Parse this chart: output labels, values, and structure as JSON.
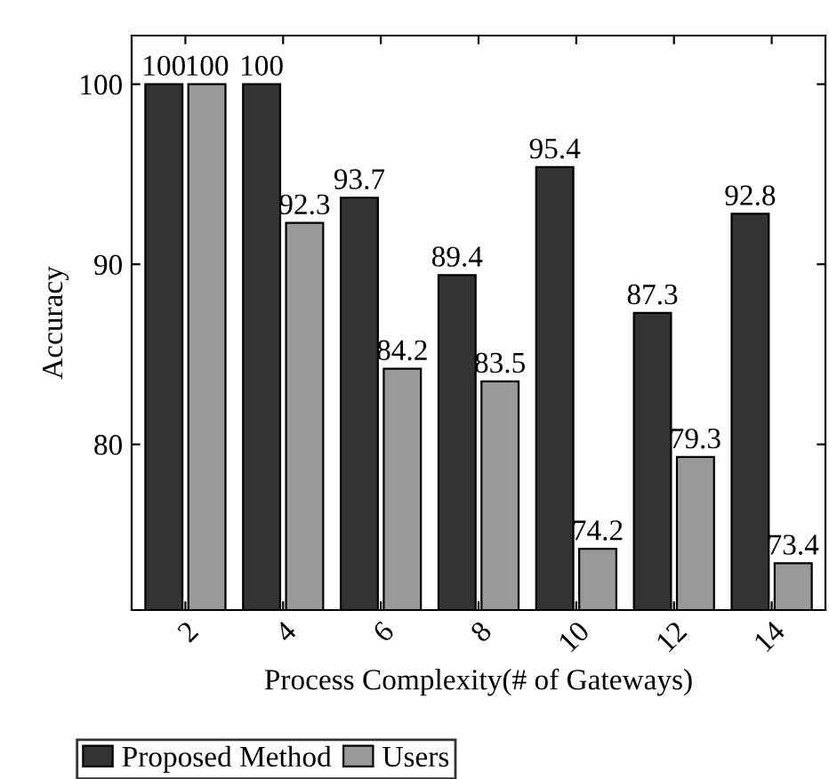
{
  "chart_data": {
    "type": "bar",
    "xlabel": "Process Complexity(# of Gateways)",
    "ylabel": "Accuracy",
    "categories": [
      "2",
      "4",
      "6",
      "8",
      "10",
      "12",
      "14"
    ],
    "series": [
      {
        "name": "Proposed Method",
        "color": "#333333",
        "values": [
          100,
          100,
          93.7,
          89.4,
          95.4,
          87.3,
          92.8
        ]
      },
      {
        "name": "Users",
        "color": "#999999",
        "values": [
          100,
          92.3,
          84.2,
          83.5,
          74.2,
          79.3,
          73.4
        ]
      }
    ],
    "ylim": [
      70.8,
      102.7
    ],
    "yticks": [
      80,
      90,
      100
    ],
    "grid": false,
    "legend": "bottom left",
    "data_labels": true
  }
}
